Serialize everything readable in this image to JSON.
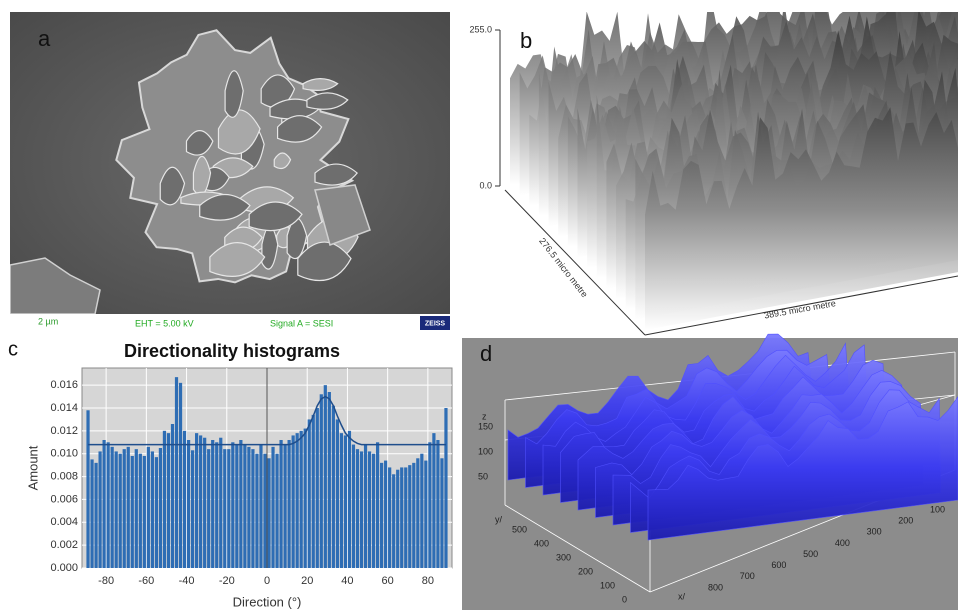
{
  "panels": {
    "a": {
      "label": "a",
      "scale_bar": "2 µm",
      "eht": "EHT = 5.00 kV",
      "signal": "Signal A = SESI",
      "brand": "ZEISS"
    },
    "b": {
      "label": "b",
      "z_max": "255.0",
      "z_min": "0.0",
      "y_axis": "276.5 micro metre",
      "x_axis": "389.5 micro metre"
    },
    "d": {
      "label": "d",
      "z_axis": "z",
      "z_ticks": [
        "150",
        "100",
        "50"
      ],
      "y_axis": "y/",
      "y_ticks": [
        "500",
        "400",
        "300",
        "200",
        "100",
        "0"
      ],
      "x_axis": "x/",
      "x_ticks": [
        "800",
        "700",
        "600",
        "500",
        "400",
        "300",
        "200",
        "100"
      ]
    }
  },
  "chart_data": {
    "type": "bar",
    "panel_label": "c",
    "title": "Directionality histograms",
    "x_label": "Direction (°)",
    "y_label": "Amount",
    "x": [
      -89,
      -87,
      -85,
      -83,
      -81,
      -79,
      -77,
      -75,
      -73,
      -71,
      -69,
      -67,
      -65,
      -63,
      -61,
      -59,
      -57,
      -55,
      -53,
      -51,
      -49,
      -47,
      -45,
      -43,
      -41,
      -39,
      -37,
      -35,
      -33,
      -31,
      -29,
      -27,
      -25,
      -23,
      -21,
      -19,
      -17,
      -15,
      -13,
      -11,
      -9,
      -7,
      -5,
      -3,
      -1,
      1,
      3,
      5,
      7,
      9,
      11,
      13,
      15,
      17,
      19,
      21,
      23,
      25,
      27,
      29,
      31,
      33,
      35,
      37,
      39,
      41,
      43,
      45,
      47,
      49,
      51,
      53,
      55,
      57,
      59,
      61,
      63,
      65,
      67,
      69,
      71,
      73,
      75,
      77,
      79,
      81,
      83,
      85,
      87,
      89
    ],
    "values": [
      0.0138,
      0.0095,
      0.0092,
      0.0102,
      0.0112,
      0.011,
      0.0106,
      0.0102,
      0.01,
      0.0104,
      0.0106,
      0.0098,
      0.0104,
      0.01,
      0.0098,
      0.0106,
      0.0102,
      0.0097,
      0.0105,
      0.012,
      0.0118,
      0.0126,
      0.0167,
      0.0162,
      0.012,
      0.0112,
      0.0103,
      0.0118,
      0.0116,
      0.0114,
      0.0104,
      0.0112,
      0.011,
      0.0114,
      0.0104,
      0.0104,
      0.011,
      0.0108,
      0.0112,
      0.0108,
      0.0106,
      0.0104,
      0.01,
      0.0108,
      0.01,
      0.0096,
      0.0106,
      0.01,
      0.0112,
      0.0108,
      0.0112,
      0.0116,
      0.0118,
      0.012,
      0.0122,
      0.013,
      0.0134,
      0.014,
      0.0152,
      0.016,
      0.0154,
      0.0142,
      0.013,
      0.0118,
      0.0116,
      0.012,
      0.0108,
      0.0104,
      0.0102,
      0.0108,
      0.0102,
      0.01,
      0.011,
      0.0092,
      0.0094,
      0.0088,
      0.0082,
      0.0086,
      0.0088,
      0.0088,
      0.009,
      0.0092,
      0.0096,
      0.01,
      0.0094,
      0.011,
      0.0118,
      0.0112,
      0.0096,
      0.014
    ],
    "fit_values": [
      0.0108,
      0.0108,
      0.0108,
      0.0108,
      0.0108,
      0.0108,
      0.0108,
      0.0108,
      0.0108,
      0.0108,
      0.0108,
      0.0108,
      0.0108,
      0.0108,
      0.0108,
      0.0108,
      0.0108,
      0.0108,
      0.0108,
      0.0108,
      0.0108,
      0.0108,
      0.0108,
      0.0108,
      0.0108,
      0.0108,
      0.0108,
      0.0108,
      0.0108,
      0.0108,
      0.0108,
      0.0108,
      0.0108,
      0.0108,
      0.0108,
      0.0108,
      0.0108,
      0.0108,
      0.0108,
      0.0108,
      0.0108,
      0.0108,
      0.0108,
      0.0108,
      0.0108,
      0.0108,
      0.0108,
      0.0108,
      0.0108,
      0.0108,
      0.0108,
      0.0109,
      0.0111,
      0.0114,
      0.0118,
      0.0125,
      0.0133,
      0.0142,
      0.0148,
      0.015,
      0.0148,
      0.0142,
      0.0133,
      0.0125,
      0.0118,
      0.0114,
      0.0111,
      0.0109,
      0.0108,
      0.0108,
      0.0108,
      0.0108,
      0.0108,
      0.0108,
      0.0108,
      0.0108,
      0.0108,
      0.0108,
      0.0108,
      0.0108,
      0.0108,
      0.0108,
      0.0108,
      0.0108,
      0.0108,
      0.0108,
      0.0108,
      0.0108,
      0.0108,
      0.0108
    ],
    "color": "#2e6db4",
    "fit_color": "#1f4e8c",
    "background": "#d6d6d6",
    "xlim": [
      -92,
      92
    ],
    "ylim": [
      0,
      0.0175
    ],
    "xticks": [
      -80,
      -60,
      -40,
      -20,
      0,
      20,
      40,
      60,
      80
    ],
    "yticks": [
      {
        "value": 0,
        "label": "0.000"
      },
      {
        "value": 0.002,
        "label": "0.002"
      },
      {
        "value": 0.004,
        "label": "0.004"
      },
      {
        "value": 0.006,
        "label": "0.006"
      },
      {
        "value": 0.008,
        "label": "0.008"
      },
      {
        "value": 0.01,
        "label": "0.010"
      },
      {
        "value": 0.012,
        "label": "0.012"
      },
      {
        "value": 0.014,
        "label": "0.014"
      },
      {
        "value": 0.016,
        "label": "0.016"
      }
    ],
    "grid": true
  }
}
